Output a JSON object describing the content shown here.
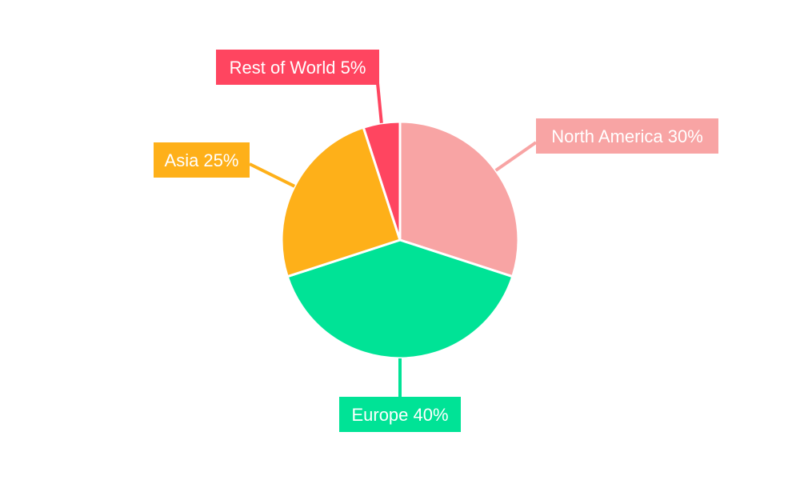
{
  "chart_data": {
    "type": "pie",
    "title": "",
    "start_angle": "12 o'clock, clockwise",
    "legend": "none",
    "slices": [
      {
        "label": "North America",
        "value": 30,
        "display": "North America 30%",
        "color": "#F8A4A4"
      },
      {
        "label": "Europe",
        "value": 40,
        "display": "Europe 40%",
        "color": "#00E396"
      },
      {
        "label": "Asia",
        "value": 25,
        "display": "Asia 25%",
        "color": "#FEB019"
      },
      {
        "label": "Rest of World",
        "value": 5,
        "display": "Rest of World 5%",
        "color": "#FF4560"
      }
    ]
  }
}
